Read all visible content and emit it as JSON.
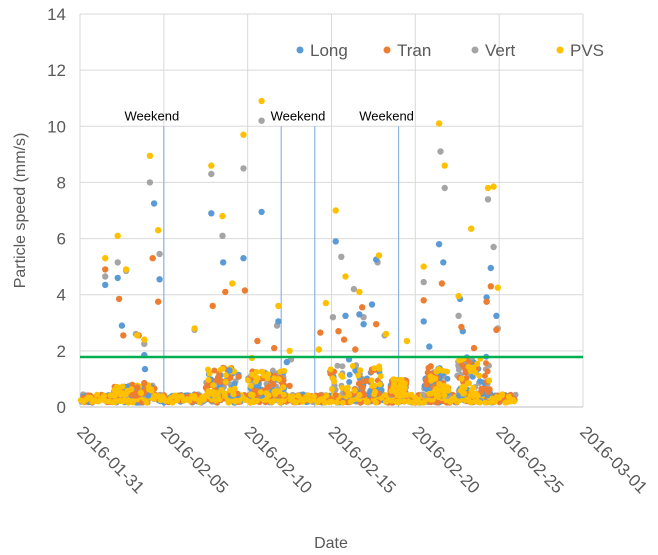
{
  "chart_data": {
    "type": "scatter",
    "xlabel": "Date",
    "ylabel": "Particle speed (mm/s)",
    "ylim": [
      0,
      14
    ],
    "y_ticks": [
      "0",
      "2",
      "4",
      "6",
      "8",
      "10",
      "12",
      "14"
    ],
    "xlim": [
      "2016-01-31",
      "2016-03-01"
    ],
    "x_ticks": [
      "2016-01-31",
      "2016-02-05",
      "2016-02-10",
      "2016-02-15",
      "2016-02-20",
      "2016-02-25",
      "2016-03-01"
    ],
    "grid": "vertical and horizontal major gridlines",
    "legend_position": "top-right",
    "threshold_line": {
      "y": 1.78,
      "color": "#00B050"
    },
    "annotations": [
      {
        "label": "Weekend",
        "start": "2016-02-05",
        "end": "2016-02-05"
      },
      {
        "label": "Weekend",
        "start": "2016-02-12",
        "end": "2016-02-14"
      },
      {
        "label": "Weekend",
        "start": "2016-02-19",
        "end": "2016-02-19"
      }
    ],
    "series": [
      {
        "name": "Long",
        "color": "#5B9BD5",
        "points": [
          [
            "2016-02-01T12:00",
            4.35
          ],
          [
            "2016-02-02T06:00",
            4.6
          ],
          [
            "2016-02-02T12:00",
            2.9
          ],
          [
            "2016-02-03T20:00",
            1.85
          ],
          [
            "2016-02-03T21:00",
            1.35
          ],
          [
            "2016-02-04T10:00",
            7.25
          ],
          [
            "2016-02-04T18:00",
            4.55
          ],
          [
            "2016-02-07T20:00",
            6.9
          ],
          [
            "2016-02-08T13:00",
            5.15
          ],
          [
            "2016-02-08T22:00",
            1.3
          ],
          [
            "2016-02-09T18:00",
            5.3
          ],
          [
            "2016-02-10T20:00",
            6.95
          ],
          [
            "2016-02-11T20:00",
            3.05
          ],
          [
            "2016-02-12T08:00",
            1.6
          ],
          [
            "2016-02-15T06:00",
            5.9
          ],
          [
            "2016-02-15T20:00",
            3.25
          ],
          [
            "2016-02-16T16:00",
            3.3
          ],
          [
            "2016-02-16T22:00",
            2.95
          ],
          [
            "2016-02-17T10:00",
            3.65
          ],
          [
            "2016-02-17T16:00",
            5.25
          ],
          [
            "2016-02-20T12:00",
            3.05
          ],
          [
            "2016-02-20T20:00",
            2.15
          ],
          [
            "2016-02-21T10:00",
            5.8
          ],
          [
            "2016-02-21T16:00",
            5.15
          ],
          [
            "2016-02-22T16:00",
            3.85
          ],
          [
            "2016-02-22T20:00",
            2.7
          ],
          [
            "2016-02-24T06:00",
            3.9
          ],
          [
            "2016-02-24T12:00",
            4.95
          ],
          [
            "2016-02-24T20:00",
            3.25
          ],
          [
            "2016-02-16T01:00",
            1.7
          ]
        ]
      },
      {
        "name": "Tran",
        "color": "#ED7D31",
        "points": [
          [
            "2016-02-01T12:00",
            4.9
          ],
          [
            "2016-02-02T08:00",
            3.85
          ],
          [
            "2016-02-02T14:00",
            2.55
          ],
          [
            "2016-02-03T12:00",
            2.55
          ],
          [
            "2016-02-03T20:00",
            0.85
          ],
          [
            "2016-02-04T08:00",
            5.3
          ],
          [
            "2016-02-04T16:00",
            3.75
          ],
          [
            "2016-02-07T22:00",
            3.6
          ],
          [
            "2016-02-08T16:00",
            4.1
          ],
          [
            "2016-02-09T20:00",
            4.15
          ],
          [
            "2016-02-10T14:00",
            2.35
          ],
          [
            "2016-02-11T14:00",
            2.1
          ],
          [
            "2016-02-12T12:00",
            0.75
          ],
          [
            "2016-02-14T08:00",
            2.65
          ],
          [
            "2016-02-15T10:00",
            2.7
          ],
          [
            "2016-02-15T18:00",
            2.4
          ],
          [
            "2016-02-16T10:00",
            2.05
          ],
          [
            "2016-02-16T20:00",
            3.55
          ],
          [
            "2016-02-17T16:00",
            2.95
          ],
          [
            "2016-02-20T12:00",
            3.8
          ],
          [
            "2016-02-20T22:00",
            1.45
          ],
          [
            "2016-02-21T14:00",
            4.4
          ],
          [
            "2016-02-22T18:00",
            2.85
          ],
          [
            "2016-02-23T12:00",
            2.1
          ],
          [
            "2016-02-24T06:00",
            3.75
          ],
          [
            "2016-02-24T12:00",
            4.3
          ],
          [
            "2016-02-24T20:00",
            2.75
          ],
          [
            "2016-02-03T10:00",
            0.7
          ],
          [
            "2016-02-20T16:00",
            0.8
          ]
        ]
      },
      {
        "name": "Vert",
        "color": "#A5A5A5",
        "points": [
          [
            "2016-02-01T12:00",
            4.65
          ],
          [
            "2016-02-02T06:00",
            5.15
          ],
          [
            "2016-02-02T18:00",
            4.85
          ],
          [
            "2016-02-03T08:00",
            2.6
          ],
          [
            "2016-02-03T20:00",
            2.25
          ],
          [
            "2016-02-04T04:00",
            8.0
          ],
          [
            "2016-02-04T18:00",
            5.45
          ],
          [
            "2016-02-06T20:00",
            2.75
          ],
          [
            "2016-02-07T20:00",
            8.3
          ],
          [
            "2016-02-08T12:00",
            6.1
          ],
          [
            "2016-02-09T18:00",
            8.5
          ],
          [
            "2016-02-10T20:00",
            10.2
          ],
          [
            "2016-02-11T18:00",
            2.9
          ],
          [
            "2016-02-12T14:00",
            1.7
          ],
          [
            "2016-02-15T02:00",
            3.2
          ],
          [
            "2016-02-15T14:00",
            5.35
          ],
          [
            "2016-02-16T08:00",
            4.2
          ],
          [
            "2016-02-16T22:00",
            3.2
          ],
          [
            "2016-02-17T18:00",
            5.15
          ],
          [
            "2016-02-18T04:00",
            2.55
          ],
          [
            "2016-02-20T12:00",
            4.45
          ],
          [
            "2016-02-21T12:00",
            9.1
          ],
          [
            "2016-02-21T18:00",
            7.8
          ],
          [
            "2016-02-22T14:00",
            3.25
          ],
          [
            "2016-02-24T08:00",
            7.4
          ],
          [
            "2016-02-24T16:00",
            5.7
          ],
          [
            "2016-02-24T22:00",
            2.8
          ]
        ]
      },
      {
        "name": "PVS",
        "color": "#FFC000",
        "points": [
          [
            "2016-02-01T12:00",
            5.3
          ],
          [
            "2016-02-02T06:00",
            6.1
          ],
          [
            "2016-02-02T18:00",
            4.9
          ],
          [
            "2016-02-03T10:00",
            2.55
          ],
          [
            "2016-02-03T20:00",
            2.4
          ],
          [
            "2016-02-04T04:00",
            8.95
          ],
          [
            "2016-02-04T16:00",
            6.3
          ],
          [
            "2016-02-06T20:00",
            2.8
          ],
          [
            "2016-02-07T20:00",
            8.6
          ],
          [
            "2016-02-08T12:00",
            6.8
          ],
          [
            "2016-02-09T18:00",
            9.7
          ],
          [
            "2016-02-10T20:00",
            10.9
          ],
          [
            "2016-02-11T20:00",
            3.6
          ],
          [
            "2016-02-12T12:00",
            2.0
          ],
          [
            "2016-02-14T16:00",
            3.7
          ],
          [
            "2016-02-15T06:00",
            7.0
          ],
          [
            "2016-02-15T20:00",
            4.65
          ],
          [
            "2016-02-16T16:00",
            4.1
          ],
          [
            "2016-02-17T20:00",
            5.4
          ],
          [
            "2016-02-18T06:00",
            2.6
          ],
          [
            "2016-02-19T12:00",
            2.35
          ],
          [
            "2016-02-20T12:00",
            5.0
          ],
          [
            "2016-02-21T10:00",
            10.1
          ],
          [
            "2016-02-21T18:00",
            8.6
          ],
          [
            "2016-02-22T14:00",
            3.95
          ],
          [
            "2016-02-23T08:00",
            6.35
          ],
          [
            "2016-02-24T08:00",
            7.8
          ],
          [
            "2016-02-24T16:00",
            7.85
          ],
          [
            "2016-02-24T22:00",
            4.25
          ],
          [
            "2016-02-09T02:00",
            4.4
          ],
          [
            "2016-02-10T06:00",
            1.75
          ],
          [
            "2016-02-14T06:00",
            2.05
          ]
        ]
      }
    ],
    "baseline_band": {
      "from": "2016-01-31",
      "to": "2016-02-26",
      "range": [
        0.15,
        0.45
      ]
    },
    "low_clusters": [
      {
        "from": "2016-02-02T00:00",
        "to": "2016-02-04T12:00",
        "max": 0.8
      },
      {
        "from": "2016-02-07T12:00",
        "to": "2016-02-09T12:00",
        "max": 1.4
      },
      {
        "from": "2016-02-10T00:00",
        "to": "2016-02-12T06:00",
        "max": 1.3
      },
      {
        "from": "2016-02-14T20:00",
        "to": "2016-02-18T00:00",
        "max": 1.5
      },
      {
        "from": "2016-02-18T12:00",
        "to": "2016-02-19T12:00",
        "max": 1.0
      },
      {
        "from": "2016-02-20T12:00",
        "to": "2016-02-22T00:00",
        "max": 1.4
      },
      {
        "from": "2016-02-22T12:00",
        "to": "2016-02-24T12:00",
        "max": 1.8
      }
    ]
  }
}
